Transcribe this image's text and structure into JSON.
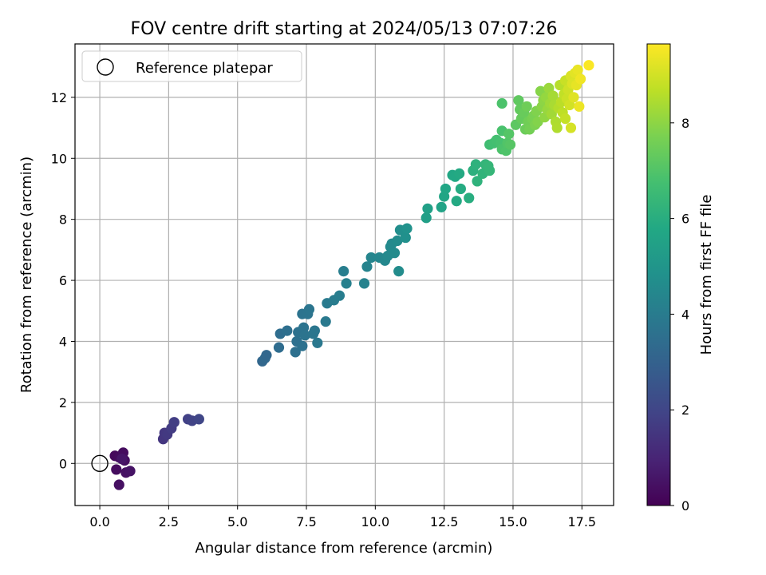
{
  "chart_data": {
    "type": "scatter",
    "title": "FOV centre drift starting at 2024/05/13 07:07:26",
    "xlabel": "Angular distance from reference (arcmin)",
    "ylabel": "Rotation from reference (arcmin)",
    "xlim": [
      -0.9,
      18.65
    ],
    "ylim": [
      -1.38,
      13.75
    ],
    "xticks": [
      0.0,
      2.5,
      5.0,
      7.5,
      10.0,
      12.5,
      15.0,
      17.5
    ],
    "xtick_labels": [
      "0.0",
      "2.5",
      "5.0",
      "7.5",
      "10.0",
      "12.5",
      "15.0",
      "17.5"
    ],
    "yticks": [
      0,
      2,
      4,
      6,
      8,
      10,
      12
    ],
    "ytick_labels": [
      "0",
      "2",
      "4",
      "6",
      "8",
      "10",
      "12"
    ],
    "grid": true,
    "legend": {
      "position": "top-left",
      "entries": [
        "Reference platepar"
      ]
    },
    "reference_point": {
      "x": 0,
      "y": 0,
      "label": "Reference platepar"
    },
    "colorbar": {
      "label": "Hours from first FF file",
      "colormap": "viridis",
      "range": [
        0,
        9.65
      ],
      "ticks": [
        0,
        2,
        4,
        6,
        8
      ],
      "tick_labels": [
        "0",
        "2",
        "4",
        "6",
        "8"
      ]
    },
    "points": [
      [
        0.55,
        0.25,
        0.2
      ],
      [
        0.7,
        0.2,
        0.25
      ],
      [
        0.85,
        0.35,
        0.3
      ],
      [
        0.6,
        -0.2,
        0.3
      ],
      [
        0.9,
        0.1,
        0.35
      ],
      [
        0.7,
        -0.7,
        0.4
      ],
      [
        0.95,
        -0.3,
        0.45
      ],
      [
        1.1,
        -0.25,
        0.5
      ],
      [
        0.8,
        0.15,
        0.55
      ],
      [
        2.3,
        0.8,
        1.5
      ],
      [
        2.35,
        1.0,
        1.55
      ],
      [
        2.45,
        0.95,
        1.6
      ],
      [
        2.6,
        1.15,
        1.7
      ],
      [
        2.7,
        1.35,
        1.75
      ],
      [
        3.2,
        1.45,
        1.85
      ],
      [
        3.35,
        1.4,
        1.9
      ],
      [
        3.6,
        1.45,
        2.0
      ],
      [
        5.9,
        3.35,
        3.2
      ],
      [
        6.0,
        3.45,
        3.25
      ],
      [
        6.05,
        3.55,
        3.2
      ],
      [
        6.5,
        3.8,
        3.4
      ],
      [
        6.55,
        4.25,
        3.45
      ],
      [
        6.8,
        4.35,
        3.5
      ],
      [
        7.1,
        3.65,
        3.55
      ],
      [
        7.15,
        4.0,
        3.55
      ],
      [
        7.2,
        4.3,
        3.6
      ],
      [
        7.35,
        3.85,
        3.6
      ],
      [
        7.35,
        4.9,
        3.65
      ],
      [
        7.4,
        4.45,
        3.65
      ],
      [
        7.45,
        4.2,
        3.7
      ],
      [
        7.55,
        4.9,
        3.7
      ],
      [
        7.6,
        5.05,
        3.75
      ],
      [
        7.75,
        4.25,
        3.8
      ],
      [
        7.8,
        4.35,
        3.8
      ],
      [
        7.9,
        3.95,
        3.85
      ],
      [
        8.2,
        4.65,
        3.9
      ],
      [
        8.25,
        5.25,
        3.95
      ],
      [
        8.5,
        5.35,
        4.0
      ],
      [
        8.7,
        5.5,
        4.05
      ],
      [
        8.85,
        6.3,
        4.1
      ],
      [
        8.95,
        5.9,
        4.15
      ],
      [
        9.6,
        5.9,
        4.25
      ],
      [
        9.7,
        6.45,
        4.3
      ],
      [
        9.85,
        6.75,
        4.35
      ],
      [
        10.15,
        6.75,
        4.4
      ],
      [
        10.35,
        6.65,
        4.45
      ],
      [
        10.45,
        6.8,
        4.5
      ],
      [
        10.55,
        7.1,
        4.55
      ],
      [
        10.6,
        7.2,
        4.55
      ],
      [
        10.7,
        6.9,
        4.6
      ],
      [
        10.8,
        7.3,
        4.65
      ],
      [
        10.85,
        6.3,
        4.65
      ],
      [
        10.9,
        7.65,
        4.7
      ],
      [
        11.05,
        7.6,
        4.75
      ],
      [
        11.1,
        7.4,
        4.8
      ],
      [
        11.15,
        7.7,
        4.85
      ],
      [
        11.85,
        8.05,
        5.4
      ],
      [
        11.9,
        8.35,
        5.45
      ],
      [
        12.4,
        8.4,
        5.6
      ],
      [
        12.5,
        8.75,
        5.65
      ],
      [
        12.55,
        9.0,
        5.7
      ],
      [
        12.8,
        9.45,
        5.75
      ],
      [
        12.9,
        9.4,
        5.8
      ],
      [
        12.95,
        8.6,
        5.85
      ],
      [
        13.05,
        9.5,
        5.85
      ],
      [
        13.1,
        9.0,
        5.9
      ],
      [
        13.4,
        8.7,
        6.0
      ],
      [
        13.55,
        9.6,
        6.1
      ],
      [
        13.65,
        9.8,
        6.15
      ],
      [
        13.7,
        9.25,
        6.2
      ],
      [
        13.9,
        9.5,
        6.25
      ],
      [
        14.0,
        9.8,
        6.3
      ],
      [
        14.1,
        9.75,
        6.35
      ],
      [
        14.15,
        9.6,
        6.35
      ],
      [
        14.15,
        10.45,
        6.65
      ],
      [
        14.3,
        10.5,
        6.7
      ],
      [
        14.4,
        10.6,
        6.75
      ],
      [
        14.55,
        10.5,
        6.8
      ],
      [
        14.6,
        10.9,
        6.85
      ],
      [
        14.6,
        11.8,
        6.9
      ],
      [
        14.6,
        10.3,
        6.9
      ],
      [
        14.75,
        10.25,
        6.95
      ],
      [
        14.8,
        10.5,
        7.0
      ],
      [
        14.85,
        10.8,
        7.05
      ],
      [
        14.9,
        10.45,
        7.1
      ],
      [
        15.1,
        11.1,
        7.2
      ],
      [
        15.2,
        11.9,
        7.25
      ],
      [
        15.25,
        11.6,
        7.3
      ],
      [
        15.3,
        11.3,
        7.35
      ],
      [
        15.4,
        11.5,
        7.4
      ],
      [
        15.45,
        10.95,
        7.45
      ],
      [
        15.5,
        11.7,
        7.5
      ],
      [
        15.55,
        11.2,
        7.55
      ],
      [
        15.6,
        10.95,
        7.6
      ],
      [
        15.7,
        11.3,
        7.65
      ],
      [
        15.75,
        11.4,
        7.7
      ],
      [
        15.8,
        11.1,
        7.75
      ],
      [
        15.85,
        11.55,
        7.8
      ],
      [
        15.9,
        11.2,
        7.85
      ],
      [
        16.0,
        12.2,
        7.9
      ],
      [
        16.05,
        11.7,
        7.95
      ],
      [
        16.1,
        11.9,
        8.0
      ],
      [
        16.15,
        11.35,
        8.05
      ],
      [
        16.2,
        12.0,
        8.1
      ],
      [
        16.25,
        11.6,
        8.15
      ],
      [
        16.3,
        12.3,
        8.2
      ],
      [
        16.35,
        11.8,
        8.25
      ],
      [
        16.4,
        11.45,
        8.3
      ],
      [
        16.45,
        12.05,
        8.35
      ],
      [
        16.5,
        11.75,
        8.4
      ],
      [
        16.55,
        11.2,
        8.45
      ],
      [
        16.6,
        11.0,
        8.5
      ],
      [
        16.65,
        11.65,
        8.55
      ],
      [
        16.7,
        12.4,
        8.6
      ],
      [
        16.75,
        11.85,
        8.65
      ],
      [
        16.8,
        11.5,
        8.7
      ],
      [
        16.85,
        12.1,
        8.75
      ],
      [
        16.9,
        11.3,
        8.8
      ],
      [
        16.9,
        12.55,
        8.85
      ],
      [
        16.95,
        11.95,
        8.9
      ],
      [
        17.0,
        12.25,
        8.95
      ],
      [
        17.05,
        11.75,
        9.0
      ],
      [
        17.1,
        11.0,
        9.05
      ],
      [
        17.1,
        12.7,
        9.1
      ],
      [
        17.15,
        12.45,
        9.15
      ],
      [
        17.2,
        12.0,
        9.2
      ],
      [
        17.25,
        12.8,
        9.25
      ],
      [
        17.3,
        12.4,
        9.3
      ],
      [
        17.35,
        12.9,
        9.35
      ],
      [
        17.4,
        11.7,
        9.4
      ],
      [
        17.45,
        12.6,
        9.45
      ],
      [
        17.75,
        13.05,
        9.6
      ]
    ]
  }
}
